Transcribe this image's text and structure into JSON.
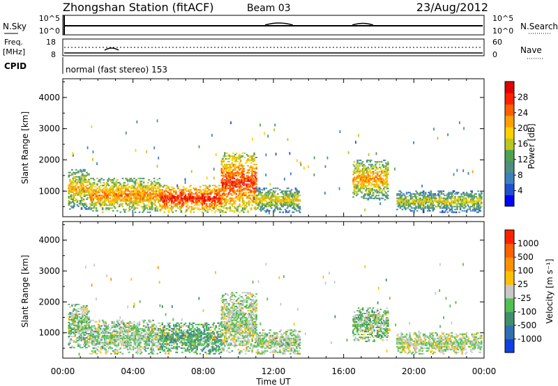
{
  "header": {
    "station": "Zhongshan Station (fitACF)",
    "beam": "Beam 03",
    "date": "23/Aug/2012"
  },
  "strip_noise": {
    "left_label": "N.Sky",
    "right_label": "N.Search",
    "left_ticks": [
      "10^5",
      "10^0"
    ],
    "right_ticks": [
      "10^5",
      "10^0"
    ]
  },
  "strip_freq": {
    "left_label_1": "Freq.",
    "left_label_2": "[MHz]",
    "right_label": "Nave",
    "left_ticks": [
      "18",
      "8"
    ],
    "right_ticks": [
      "60",
      "0"
    ]
  },
  "strip_cpid": {
    "label": "CPID",
    "text": "normal (fast stereo) 153"
  },
  "panel_power": {
    "ylabel": "Slant Range [km]",
    "yticks": [
      "4000",
      "3000",
      "2000",
      "1000"
    ],
    "colorbar_label": "Power [dB]",
    "colorbar_ticks": [
      "28",
      "24",
      "20",
      "16",
      "12",
      "8",
      "4"
    ],
    "colors": [
      "#0000ff",
      "#2050d0",
      "#3f7fbf",
      "#4e8f7e",
      "#50a050",
      "#b8c820",
      "#ffd000",
      "#ffa000",
      "#ff6000",
      "#ff2000",
      "#e00000"
    ]
  },
  "panel_velocity": {
    "ylabel": "Slant Range [km]",
    "yticks": [
      "4000",
      "3000",
      "2000",
      "1000"
    ],
    "colorbar_label": "Velocity [m s⁻¹]",
    "colorbar_ticks": [
      "1000",
      "500",
      "100",
      "25",
      "-25",
      "-100",
      "-500",
      "-1000"
    ],
    "colors": [
      "#1040e0",
      "#3070b0",
      "#3f8f6f",
      "#50c050",
      "#c8c8c8",
      "#ffc000",
      "#ff9000",
      "#ff6000",
      "#ff2000"
    ]
  },
  "xaxis": {
    "ticks": [
      "00:00",
      "04:00",
      "08:00",
      "12:00",
      "16:00",
      "20:00",
      "00:00"
    ],
    "label": "Time UT"
  },
  "chart_data": {
    "type": "heatmap",
    "title": "Zhongshan Station (fitACF)  Beam 03  23/Aug/2012",
    "xlabel": "Time UT",
    "ylabel": "Slant Range [km]",
    "x_range_hours": [
      0,
      24
    ],
    "ylim_km": [
      180,
      4600
    ],
    "panels": [
      {
        "name": "Power [dB]",
        "scale": [
          0,
          30
        ],
        "echo_regions": [
          {
            "t_start": 0.3,
            "t_end": 1.5,
            "r_min": 400,
            "r_max": 1700,
            "level": 20
          },
          {
            "t_start": 1.5,
            "t_end": 5.5,
            "r_min": 300,
            "r_max": 1400,
            "level": 22
          },
          {
            "t_start": 5.5,
            "t_end": 9.0,
            "r_min": 300,
            "r_max": 1200,
            "level": 27
          },
          {
            "t_start": 9.0,
            "t_end": 11.0,
            "r_min": 300,
            "r_max": 2200,
            "level": 26
          },
          {
            "t_start": 11.0,
            "t_end": 13.5,
            "r_min": 300,
            "r_max": 1100,
            "level": 18
          },
          {
            "t_start": 16.5,
            "t_end": 18.5,
            "r_min": 700,
            "r_max": 2000,
            "level": 21
          },
          {
            "t_start": 19.0,
            "t_end": 23.8,
            "r_min": 300,
            "r_max": 1000,
            "level": 17
          }
        ]
      },
      {
        "name": "Velocity [m s-1]",
        "scale": [
          -1000,
          1000
        ],
        "echo_regions": [
          {
            "t_start": 0.3,
            "t_end": 1.5,
            "r_min": 500,
            "r_max": 1900,
            "level": -200
          },
          {
            "t_start": 1.5,
            "t_end": 5.5,
            "r_min": 300,
            "r_max": 1400,
            "level": -150
          },
          {
            "t_start": 5.5,
            "t_end": 9.0,
            "r_min": 300,
            "r_max": 1300,
            "level": -350
          },
          {
            "t_start": 9.0,
            "t_end": 11.0,
            "r_min": 300,
            "r_max": 2300,
            "level": -100
          },
          {
            "t_start": 11.0,
            "t_end": 13.5,
            "r_min": 300,
            "r_max": 1100,
            "level": -120
          },
          {
            "t_start": 16.5,
            "t_end": 18.5,
            "r_min": 700,
            "r_max": 1800,
            "level": -200
          },
          {
            "t_start": 19.0,
            "t_end": 23.8,
            "r_min": 300,
            "r_max": 1000,
            "level": -80
          }
        ]
      }
    ]
  }
}
